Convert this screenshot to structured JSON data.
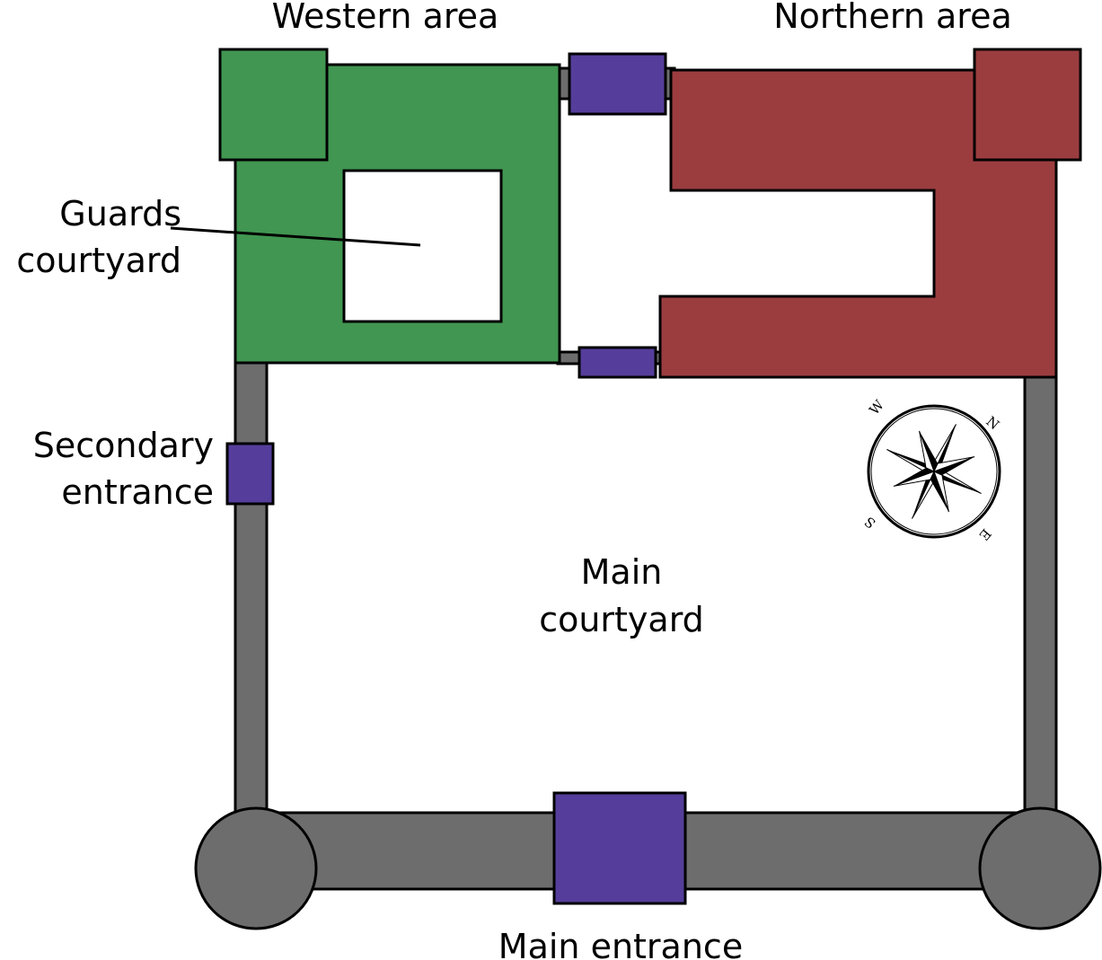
{
  "colors": {
    "wall": "#6d6d6d",
    "western": "#419651",
    "northern": "#9b3d3f",
    "gate": "#553e9b",
    "tower": "#6d6d6d",
    "outline": "#000000",
    "background": "#ffffff"
  },
  "labels": {
    "western_area": "Western area",
    "northern_area": "Northern area",
    "guards_courtyard_line1": "Guards",
    "guards_courtyard_line2": "courtyard",
    "secondary_entrance_line1": "Secondary",
    "secondary_entrance_line2": "entrance",
    "main_courtyard_line1": "Main",
    "main_courtyard_line2": "courtyard",
    "main_entrance": "Main entrance"
  },
  "compass": {
    "icon": "compass-rose-icon",
    "north": "N",
    "east": "E",
    "south": "S",
    "west": "W"
  }
}
